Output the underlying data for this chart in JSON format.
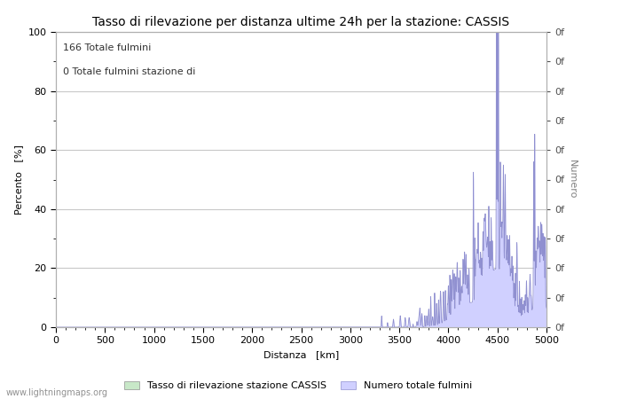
{
  "title": "Tasso di rilevazione per distanza ultime 24h per la stazione: CASSIS",
  "xlabel": "Distanza   [km]",
  "ylabel_left": "Percento   [%]",
  "ylabel_right": "Numero",
  "annotation_line1": "166 Totale fulmini",
  "annotation_line2": "0 Totale fulmini stazione di",
  "legend_label1": "Tasso di rilevazione stazione CASSIS",
  "legend_label2": "Numero totale fulmini",
  "watermark": "www.lightningmaps.org",
  "xlim": [
    0,
    5000
  ],
  "ylim_left": [
    0,
    100
  ],
  "ylim_right": [
    0,
    100
  ],
  "xticks": [
    0,
    500,
    1000,
    1500,
    2000,
    2500,
    3000,
    3500,
    4000,
    4500,
    5000
  ],
  "yticks_left": [
    0,
    20,
    40,
    60,
    80,
    100
  ],
  "fill_color_green": "#c8e8c8",
  "fill_color_blue": "#d0d0ff",
  "line_color_blue": "#9090d0",
  "grid_color": "#c8c8c8",
  "bg_color": "#ffffff",
  "title_fontsize": 10,
  "label_fontsize": 8,
  "tick_fontsize": 8,
  "annotation_fontsize": 8
}
